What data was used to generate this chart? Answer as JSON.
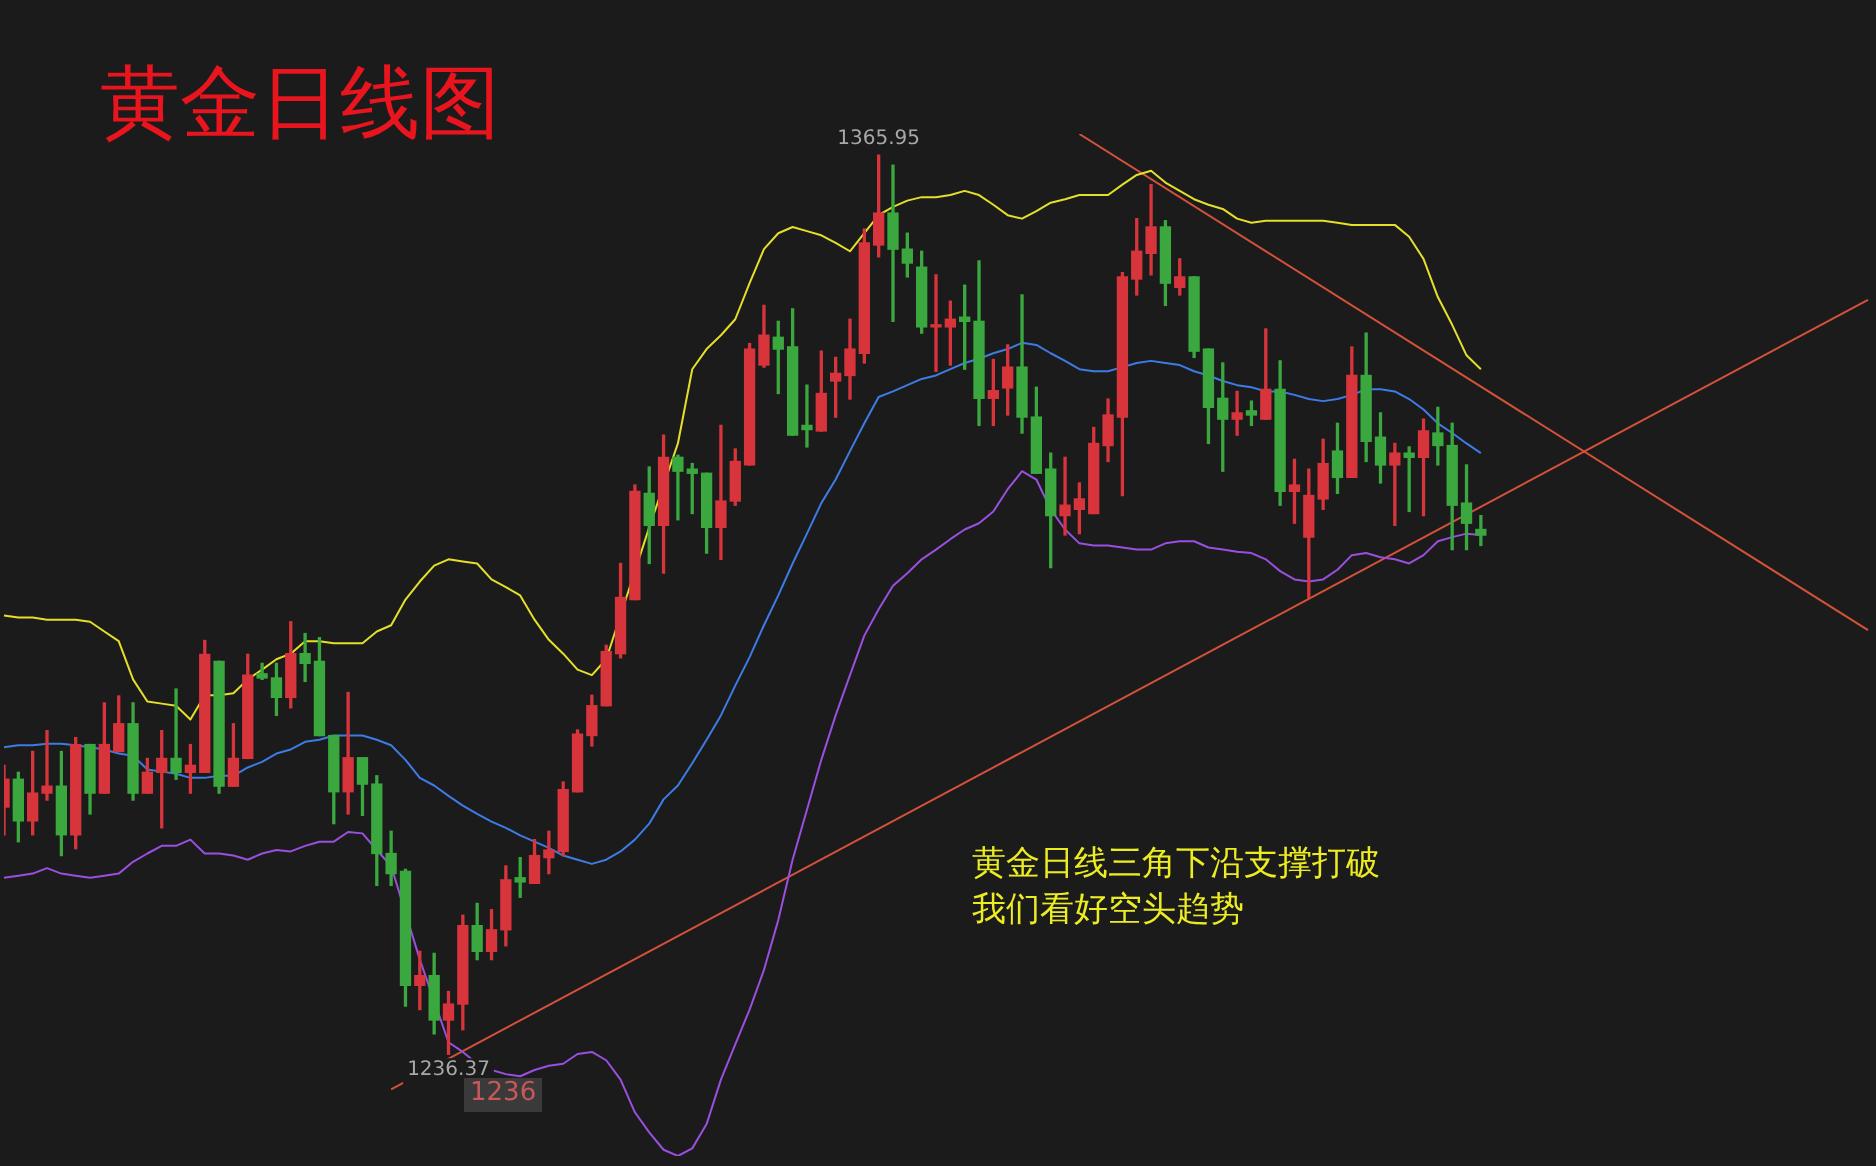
{
  "chart_data": {
    "type": "candlestick",
    "title": "黄金日线图",
    "tick_labels": false,
    "categories": [
      null,
      null,
      null,
      null,
      null,
      null,
      null,
      null,
      null,
      null,
      null,
      null,
      null,
      null,
      null,
      null,
      null,
      null,
      null,
      null,
      null,
      null,
      null,
      null,
      null,
      null,
      null,
      null,
      null,
      null,
      null,
      null,
      null,
      null,
      null,
      null,
      null,
      null,
      null,
      null,
      null,
      null,
      null,
      null,
      null,
      null,
      null,
      null,
      null,
      null,
      null,
      null,
      null,
      null,
      null,
      null,
      null,
      null,
      null,
      null,
      null,
      null,
      null,
      null,
      null,
      null,
      null,
      null,
      null,
      null,
      null,
      null,
      null,
      null,
      null,
      null,
      null,
      null,
      null,
      null,
      null,
      null,
      null,
      null,
      null,
      null,
      null,
      null,
      null,
      null,
      null,
      null,
      null,
      null,
      null,
      null,
      null,
      null,
      null,
      null,
      null,
      null,
      null,
      null,
      null,
      null,
      null,
      null,
      null,
      null,
      null,
      null,
      null,
      null,
      null,
      null,
      null,
      null,
      null,
      null,
      null,
      null,
      null,
      null,
      null,
      null,
      null,
      null,
      null,
      null,
      null
    ],
    "ohlc": [
      [
        1272,
        1278,
        1268,
        1276
      ],
      [
        1276,
        1277,
        1267,
        1270
      ],
      [
        1270,
        1280,
        1268,
        1274
      ],
      [
        1274,
        1283,
        1273,
        1275
      ],
      [
        1275,
        1280,
        1265,
        1268
      ],
      [
        1268,
        1282,
        1266,
        1281
      ],
      [
        1281,
        1281,
        1271,
        1274
      ],
      [
        1274,
        1287,
        1274,
        1281
      ],
      [
        1280,
        1288,
        1280,
        1284
      ],
      [
        1284,
        1287,
        1273,
        1274
      ],
      [
        1274,
        1279,
        1274,
        1277
      ],
      [
        1277,
        1283,
        1269,
        1279
      ],
      [
        1279,
        1289,
        1276,
        1277
      ],
      [
        1277,
        1281,
        1274,
        1278
      ],
      [
        1277,
        1296,
        1277,
        1294
      ],
      [
        1293,
        1293,
        1274,
        1275
      ],
      [
        1275,
        1284,
        1275,
        1279
      ],
      [
        1279,
        1294,
        1279,
        1291
      ],
      [
        1291.2,
        1292.7,
        1290.4,
        1290.6
      ],
      [
        1290.6,
        1292.7,
        1285.2,
        1287.8
      ],
      [
        1287.8,
        1298.7,
        1286.3,
        1294.1
      ],
      [
        1294.1,
        1297.0,
        1290.1,
        1292.7
      ],
      [
        1293.0,
        1296.4,
        1282.3,
        1282.3
      ],
      [
        1282.3,
        1282.3,
        1269.6,
        1274.2
      ],
      [
        1274.2,
        1288.5,
        1271.0,
        1279.1
      ],
      [
        1279.1,
        1279.1,
        1270.8,
        1275.3
      ],
      [
        1275.3,
        1276.5,
        1260.7,
        1265.3
      ],
      [
        1265.3,
        1268.5,
        1260.7,
        1262.4
      ],
      [
        1262.7,
        1263.0,
        1243.3,
        1246.3
      ],
      [
        1246.3,
        1251.2,
        1242.8,
        1247.7
      ],
      [
        1247.7,
        1250.9,
        1239.3,
        1241.3
      ],
      [
        1241.3,
        1245.4,
        1236.37,
        1243.6
      ],
      [
        1243.6,
        1256.4,
        1239.9,
        1254.9
      ],
      [
        1254.9,
        1258.1,
        1250.0,
        1251.2
      ],
      [
        1251.2,
        1257.2,
        1250.0,
        1254.3
      ],
      [
        1254.3,
        1263.5,
        1252.0,
        1261.5
      ],
      [
        1261.8,
        1264.7,
        1259.0,
        1261.2
      ],
      [
        1261.0,
        1267.3,
        1261.0,
        1265.0
      ],
      [
        1264.7,
        1268.5,
        1262.4,
        1265.8
      ],
      [
        1265.6,
        1275.6,
        1265.0,
        1274.5
      ],
      [
        1274.2,
        1283.1,
        1274.2,
        1282.5
      ],
      [
        1282.3,
        1288.1,
        1280.8,
        1286.6
      ],
      [
        1286.6,
        1295.3,
        1286.6,
        1294.4
      ],
      [
        1294.1,
        1307.1,
        1293.5,
        1302.2
      ],
      [
        1301.9,
        1318.4,
        1301.9,
        1317.5
      ],
      [
        1317.2,
        1321.0,
        1307.1,
        1312.6
      ],
      [
        1312.6,
        1325.6,
        1305.7,
        1322.4
      ],
      [
        1322.4,
        1322.7,
        1313.4,
        1320.4
      ],
      [
        1320.7,
        1321.5,
        1314.3,
        1320.1
      ],
      [
        1320.1,
        1320.1,
        1308.6,
        1312.3
      ],
      [
        1312.3,
        1327.0,
        1307.7,
        1316.1
      ],
      [
        1316.1,
        1323.6,
        1315.5,
        1321.8
      ],
      [
        1321.3,
        1338.8,
        1321.3,
        1338.0
      ],
      [
        1335.7,
        1344.3,
        1335.4,
        1340.0
      ],
      [
        1339.7,
        1342.0,
        1331.6,
        1338.0
      ],
      [
        1338.3,
        1343.8,
        1325.6,
        1325.6
      ],
      [
        1327.0,
        1332.8,
        1323.9,
        1326.4
      ],
      [
        1326.2,
        1337.7,
        1326.2,
        1331.6
      ],
      [
        1333.4,
        1336.8,
        1328.2,
        1334.5
      ],
      [
        1334.2,
        1342.3,
        1330.8,
        1338.0
      ],
      [
        1337.4,
        1355.3,
        1336.0,
        1353.3
      ],
      [
        1353.0,
        1365.95,
        1351.3,
        1357.6
      ],
      [
        1357.6,
        1364.5,
        1342.0,
        1352.4
      ],
      [
        1352.4,
        1354.7,
        1348.4,
        1350.4
      ],
      [
        1349.8,
        1352.1,
        1340.3,
        1341.2
      ],
      [
        1341.2,
        1348.7,
        1334.8,
        1341.5
      ],
      [
        1341.2,
        1344.9,
        1335.7,
        1342.3
      ],
      [
        1342.6,
        1347.2,
        1335.1,
        1342.0
      ],
      [
        1342.0,
        1350.7,
        1327.0,
        1330.9
      ],
      [
        1330.9,
        1336.5,
        1327.0,
        1332.0
      ],
      [
        1332.4,
        1338.6,
        1328.5,
        1335.4
      ],
      [
        1335.4,
        1345.8,
        1325.9,
        1328.2
      ],
      [
        1328.2,
        1332.5,
        1320.1,
        1320.1
      ],
      [
        1320.7,
        1323.0,
        1306.5,
        1314.0
      ],
      [
        1314.0,
        1322.4,
        1311.2,
        1315.5
      ],
      [
        1314.9,
        1318.7,
        1311.4,
        1316.4
      ],
      [
        1314.3,
        1326.7,
        1314.3,
        1324.4
      ],
      [
        1324.1,
        1330.8,
        1321.8,
        1328.5
      ],
      [
        1328.2,
        1349.0,
        1316.9,
        1348.4
      ],
      [
        1348.1,
        1356.8,
        1345.8,
        1352.1
      ],
      [
        1351.8,
        1361.7,
        1348.7,
        1355.6
      ],
      [
        1355.6,
        1356.5,
        1344.3,
        1347.5
      ],
      [
        1346.9,
        1351.0,
        1345.8,
        1348.4
      ],
      [
        1348.4,
        1348.4,
        1336.8,
        1337.7
      ],
      [
        1338.0,
        1338.0,
        1324.4,
        1329.6
      ],
      [
        1330.9,
        1336.0,
        1320.4,
        1327.9
      ],
      [
        1327.9,
        1331.9,
        1325.6,
        1328.8
      ],
      [
        1329.1,
        1330.5,
        1327.0,
        1328.5
      ],
      [
        1327.9,
        1340.9,
        1327.9,
        1332.2
      ],
      [
        1332.2,
        1336.3,
        1315.5,
        1317.5
      ],
      [
        1317.5,
        1322.1,
        1312.9,
        1318.4
      ],
      [
        1310.9,
        1320.7,
        1302.2,
        1316.9
      ],
      [
        1316.4,
        1325.0,
        1314.9,
        1321.5
      ],
      [
        1323.3,
        1327.3,
        1317.2,
        1319.5
      ],
      [
        1319.5,
        1338.3,
        1319.5,
        1334.2
      ],
      [
        1334.2,
        1340.3,
        1321.8,
        1324.7
      ],
      [
        1325.3,
        1328.8,
        1318.7,
        1321.3
      ],
      [
        1321.3,
        1324.4,
        1312.6,
        1323.0
      ],
      [
        1323.0,
        1323.9,
        1314.6,
        1322.4
      ],
      [
        1322.4,
        1327.9,
        1314.0,
        1326.2
      ],
      [
        1325.9,
        1329.6,
        1321.3,
        1324.1
      ],
      [
        1324.1,
        1327.3,
        1309.1,
        1315.5
      ],
      [
        1315.8,
        1321.3,
        1309.1,
        1312.9
      ],
      [
        1312.0,
        1314.0,
        1309.7,
        1311.2
      ],
      null,
      null,
      null,
      null,
      null,
      null,
      null,
      null,
      null,
      null,
      null,
      null,
      null,
      null,
      null,
      null,
      null,
      null,
      null,
      null,
      null,
      null,
      null,
      null,
      null,
      null,
      null
    ],
    "colors": [
      "#d8343c",
      "#3aa83e",
      "#d8343c",
      "#d8343c",
      "#3aa83e",
      "#d8343c",
      "#3aa83e",
      "#d8343c",
      "#d8343c",
      "#3aa83e",
      "#d8343c",
      "#d8343c",
      "#3aa83e",
      "#d8343c",
      "#d8343c",
      "#3aa83e",
      "#d8343c",
      "#d8343c",
      "#3aa83e",
      "#3aa83e",
      "#d8343c",
      "#3aa83e",
      "#3aa83e",
      "#3aa83e",
      "#d8343c",
      "#3aa83e",
      "#3aa83e",
      "#3aa83e",
      "#3aa83e",
      "#d8343c",
      "#3aa83e",
      "#d8343c",
      "#d8343c",
      "#3aa83e",
      "#d8343c",
      "#d8343c",
      "#3aa83e",
      "#d8343c",
      "#d8343c",
      "#d8343c",
      "#d8343c",
      "#d8343c",
      "#d8343c",
      "#d8343c",
      "#d8343c",
      "#3aa83e",
      "#d8343c",
      "#3aa83e",
      "#3aa83e",
      "#3aa83e",
      "#d8343c",
      "#d8343c",
      "#d8343c",
      "#d8343c",
      "#3aa83e",
      "#3aa83e",
      "#3aa83e",
      "#d8343c",
      "#d8343c",
      "#d8343c",
      "#d8343c",
      "#d8343c",
      "#3aa83e",
      "#3aa83e",
      "#3aa83e",
      "#d8343c",
      "#d8343c",
      "#3aa83e",
      "#3aa83e",
      "#d8343c",
      "#d8343c",
      "#3aa83e",
      "#3aa83e",
      "#3aa83e",
      "#d8343c",
      "#d8343c",
      "#d8343c",
      "#d8343c",
      "#d8343c",
      "#d8343c",
      "#d8343c",
      "#3aa83e",
      "#d8343c",
      "#3aa83e",
      "#3aa83e",
      "#3aa83e",
      "#d8343c",
      "#3aa83e",
      "#d8343c",
      "#3aa83e",
      "#d8343c",
      "#d8343c",
      "#d8343c",
      "#3aa83e",
      "#d8343c",
      "#3aa83e",
      "#3aa83e",
      "#d8343c",
      "#3aa83e",
      "#d8343c",
      "#3aa83e",
      "#3aa83e",
      "#3aa83e",
      "#3aa83e",
      null,
      null,
      null,
      null,
      null,
      null,
      null,
      null,
      null,
      null,
      null,
      null,
      null,
      null,
      null,
      null,
      null,
      null,
      null,
      null,
      null,
      null,
      null,
      null,
      null,
      null,
      null
    ],
    "series": [
      {
        "type": "line",
        "color": "#e6df2a",
        "values": [
          1299.6,
          1299.3,
          1299.3,
          1299.0,
          1299.0,
          1299.0,
          1298.7,
          1297.3,
          1295.9,
          1290.4,
          1287.2,
          1286.9,
          1286.6,
          1284.6,
          1288.1,
          1288.1,
          1288.4,
          1290.4,
          1291.8,
          1293.3,
          1294.1,
          1295.9,
          1295.9,
          1295.6,
          1295.6,
          1295.6,
          1297.3,
          1298.2,
          1301.9,
          1304.5,
          1306.8,
          1307.7,
          1307.4,
          1307.1,
          1304.8,
          1303.7,
          1302.5,
          1299.0,
          1296.1,
          1294.1,
          1291.8,
          1291.0,
          1293.3,
          null,
          null,
          1312.3,
          null,
          1324.4,
          1335.1,
          1338.0,
          1340.0,
          1342.3,
          1347.5,
          1352.4,
          1354.7,
          1355.6,
          1355.0,
          1354.4,
          1353.3,
          1352.1,
          1354.7,
          1357.3,
          1358.5,
          1359.4,
          1359.9,
          1359.9,
          1360.2,
          1360.8,
          1360.2,
          1358.8,
          1357.3,
          1356.8,
          1357.9,
          1359.1,
          1359.6,
          1360.2,
          1360.2,
          1360.2,
          1361.7,
          1363.1,
          1363.7,
          1362.0,
          1360.8,
          1359.6,
          1358.8,
          1358.2,
          1356.8,
          1356.2,
          1356.5,
          1356.5,
          1356.5,
          1356.5,
          1356.5,
          1356.2,
          1355.9,
          1355.9,
          1355.9,
          1355.9,
          1354.2,
          1351.0,
          1345.5,
          1341.5,
          1337.1,
          1335.1,
          null,
          null,
          null,
          null,
          null,
          null,
          null,
          null,
          null,
          null,
          null,
          null,
          null,
          null,
          null,
          null,
          null,
          null,
          null,
          null,
          null,
          null,
          null,
          null,
          null,
          null,
          null
        ]
      },
      {
        "type": "line",
        "color": "#3d7be6",
        "values": [
          1280.6,
          1280.9,
          1280.9,
          1281.1,
          1281.1,
          1280.9,
          1280.6,
          1280.3,
          1279.7,
          1279.4,
          1277.4,
          1277.1,
          1276.8,
          1276.2,
          1276.2,
          1276.5,
          1276.5,
          1277.7,
          1278.5,
          1279.7,
          1280.3,
          1281.4,
          1281.7,
          1282.3,
          1282.3,
          1282.3,
          1281.7,
          1280.9,
          1278.8,
          1276.2,
          1275.1,
          1273.6,
          1272.2,
          1271.0,
          1269.9,
          1269.0,
          1267.9,
          1267.0,
          1266.1,
          1265.0,
          1264.4,
          1263.8,
          1264.4,
          1265.6,
          1267.3,
          1269.6,
          1273.1,
          1275.1,
          1278.3,
          1281.7,
          1285.2,
          1289.5,
          1293.6,
          1298.2,
          1302.5,
          1307.1,
          1311.4,
          1315.8,
          1319.2,
          1323.3,
          1327.3,
          1331.1,
          1331.9,
          1332.8,
          1333.7,
          1334.2,
          1335.1,
          1336.0,
          1336.6,
          1337.4,
          1338.0,
          1338.9,
          1338.6,
          1337.4,
          1336.3,
          1335.1,
          1334.8,
          1334.8,
          1335.4,
          1336.0,
          1336.3,
          1336.0,
          1335.7,
          1334.8,
          1334.2,
          1333.4,
          1332.8,
          1332.5,
          1331.9,
          1331.9,
          1331.4,
          1330.8,
          1330.5,
          1330.8,
          1331.4,
          1332.2,
          1332.2,
          1331.9,
          1330.8,
          1329.3,
          1327.3,
          1325.9,
          1324.4,
          1323.0,
          null,
          null,
          null,
          null,
          null,
          null,
          null,
          null,
          null,
          null,
          null,
          null,
          null,
          null,
          null,
          null,
          null,
          null,
          null,
          null,
          null,
          null,
          null,
          null,
          null,
          null,
          null
        ]
      },
      {
        "type": "line",
        "color": "#9a4fe0",
        "values": [
          1261.8,
          1262.1,
          1262.4,
          1263.2,
          1262.4,
          1262.1,
          1261.8,
          1262.1,
          1262.4,
          1264.1,
          1265.3,
          1266.4,
          1266.4,
          1267.3,
          1265.3,
          1265.3,
          1265.0,
          1264.4,
          1265.3,
          1265.8,
          1265.6,
          1266.4,
          1267.0,
          1267.0,
          1268.4,
          1268.2,
          1265.8,
          1263.5,
          null,
          1250.0,
          null,
          1238.1,
          1236.7,
          1235.0,
          1234.1,
          1233.5,
          1233.2,
          1234.1,
          1234.7,
          1235.0,
          1236.4,
          1236.7,
          1235.5,
          1232.7,
          1228.0,
          1225.1,
          1222.6,
          1221.7,
          1222.8,
          1226.3,
          1232.7,
          1237.8,
          1242.8,
          1248.5,
          1255.7,
          1264.4,
          1271.6,
          1278.8,
          1285.2,
          1291.0,
          1296.7,
          1300.5,
          1303.9,
          1305.7,
          1307.7,
          1309.1,
          1310.6,
          1312.0,
          1312.9,
          1314.6,
          1317.8,
          1320.4,
          1319.2,
          1314.9,
          1312.0,
          1310.0,
          1309.7,
          1309.7,
          1309.4,
          1309.1,
          1309.1,
          1310.0,
          1310.3,
          1310.3,
          1309.4,
          1309.1,
          1308.8,
          1308.6,
          1307.7,
          1306.0,
          1304.8,
          1304.5,
          1304.8,
          1306.2,
          1308.3,
          1308.6,
          1308.0,
          1307.7,
          1307.1,
          1308.3,
          1310.3,
          1310.9,
          1311.4,
          1311.2,
          null,
          null,
          null,
          null,
          null,
          null,
          null,
          null,
          null,
          null,
          null,
          null,
          null,
          null,
          null,
          null,
          null,
          null,
          null,
          null,
          null,
          null,
          null,
          null,
          null,
          null,
          null
        ]
      },
      {
        "type": "line",
        "color": "#d4513a",
        "values": [
          null,
          null,
          null,
          null,
          null,
          null,
          null,
          null,
          null,
          null,
          null,
          null,
          null,
          null,
          null,
          null,
          null,
          null,
          null,
          null,
          null,
          null,
          null,
          null,
          null,
          null,
          null,
          1231.3,
          null,
          null,
          null,
          null,
          null,
          null,
          null,
          null,
          null,
          null,
          null,
          null,
          null,
          null,
          null,
          null,
          null,
          null,
          null,
          null,
          null,
          null,
          null,
          null,
          null,
          null,
          null,
          null,
          null,
          null,
          null,
          null,
          null,
          null,
          null,
          null,
          null,
          null,
          null,
          null,
          null,
          null,
          null,
          null,
          null,
          null,
          null,
          null,
          null,
          null,
          null,
          null,
          null,
          null,
          null,
          null,
          null,
          null,
          null,
          null,
          null,
          null,
          null,
          null,
          null,
          null,
          null,
          null,
          null,
          null,
          null,
          null,
          null,
          null,
          null,
          null,
          null,
          null,
          null,
          null,
          null,
          null,
          null,
          null,
          null,
          null,
          null,
          null,
          null,
          null,
          null,
          null,
          null,
          null,
          null,
          null,
          null,
          null,
          null,
          null,
          null,
          null,
          1345.1
        ]
      },
      {
        "type": "line",
        "color": "#d4513a",
        "values": [
          null,
          null,
          null,
          null,
          null,
          null,
          null,
          null,
          null,
          null,
          null,
          null,
          null,
          null,
          null,
          null,
          null,
          null,
          null,
          null,
          null,
          null,
          null,
          null,
          null,
          null,
          null,
          null,
          null,
          null,
          null,
          null,
          null,
          null,
          null,
          null,
          null,
          null,
          null,
          null,
          null,
          null,
          null,
          null,
          null,
          null,
          null,
          null,
          null,
          null,
          null,
          null,
          null,
          null,
          null,
          null,
          null,
          null,
          null,
          null,
          null,
          null,
          null,
          null,
          null,
          null,
          null,
          null,
          null,
          null,
          null,
          null,
          null,
          null,
          null,
          1369.0,
          null,
          null,
          null,
          null,
          null,
          null,
          null,
          null,
          null,
          null,
          null,
          null,
          null,
          null,
          null,
          null,
          null,
          null,
          null,
          null,
          null,
          null,
          null,
          null,
          null,
          null,
          null,
          null,
          null,
          null,
          null,
          null,
          null,
          null,
          null,
          null,
          null,
          null,
          null,
          null,
          null,
          null,
          null,
          null,
          null,
          null,
          null,
          null,
          null,
          null,
          null,
          null,
          null,
          null,
          1297.5
        ]
      }
    ],
    "annotations": [
      {
        "text": "1365.95",
        "y": 1365.95
      },
      {
        "text": "1236.37",
        "y": 1236.37
      },
      "1236",
      "黄金日线三角下沿支撑打破",
      "我们看好空头趋势"
    ]
  }
}
